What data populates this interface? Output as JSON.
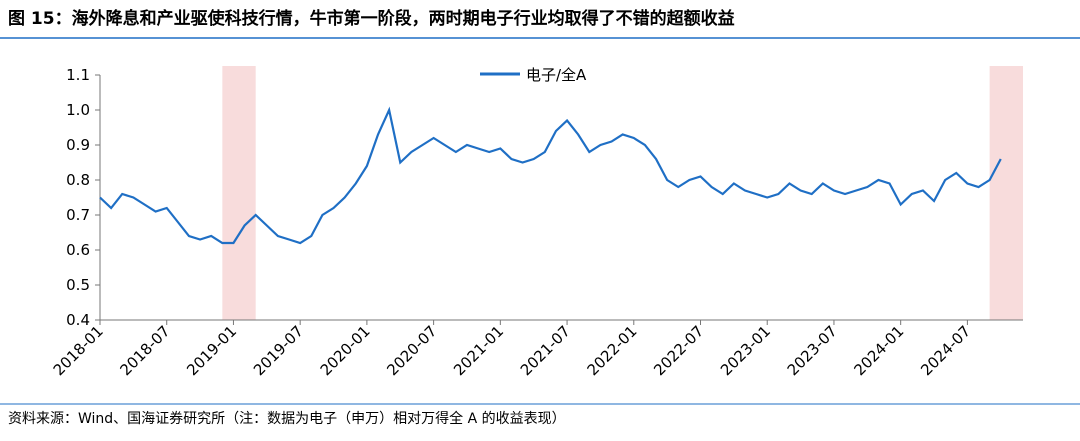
{
  "chart_data": {
    "type": "line",
    "title": "图 15：海外降息和产业驱使科技行情，牛市第一阶段，两时期电子行业均取得了不错的超额收益",
    "source": "资料来源：Wind、国海证券研究所（注：数据为电子（申万）相对万得全 A 的收益表现）",
    "x": [
      "2018-01",
      "2018-02",
      "2018-03",
      "2018-04",
      "2018-05",
      "2018-06",
      "2018-07",
      "2018-08",
      "2018-09",
      "2018-10",
      "2018-11",
      "2018-12",
      "2019-01",
      "2019-02",
      "2019-03",
      "2019-04",
      "2019-05",
      "2019-06",
      "2019-07",
      "2019-08",
      "2019-09",
      "2019-10",
      "2019-11",
      "2019-12",
      "2020-01",
      "2020-02",
      "2020-03",
      "2020-04",
      "2020-05",
      "2020-06",
      "2020-07",
      "2020-08",
      "2020-09",
      "2020-10",
      "2020-11",
      "2020-12",
      "2021-01",
      "2021-02",
      "2021-03",
      "2021-04",
      "2021-05",
      "2021-06",
      "2021-07",
      "2021-08",
      "2021-09",
      "2021-10",
      "2021-11",
      "2021-12",
      "2022-01",
      "2022-02",
      "2022-03",
      "2022-04",
      "2022-05",
      "2022-06",
      "2022-07",
      "2022-08",
      "2022-09",
      "2022-10",
      "2022-11",
      "2022-12",
      "2023-01",
      "2023-02",
      "2023-03",
      "2023-04",
      "2023-05",
      "2023-06",
      "2023-07",
      "2023-08",
      "2023-09",
      "2023-10",
      "2023-11",
      "2023-12",
      "2024-01",
      "2024-02",
      "2024-03",
      "2024-04",
      "2024-05",
      "2024-06",
      "2024-07",
      "2024-08",
      "2024-09",
      "2024-10"
    ],
    "series": [
      {
        "name": "电子/全A",
        "color": "#1f6fc5",
        "values": [
          0.75,
          0.72,
          0.76,
          0.75,
          0.73,
          0.71,
          0.72,
          0.68,
          0.64,
          0.63,
          0.64,
          0.62,
          0.62,
          0.67,
          0.7,
          0.67,
          0.64,
          0.63,
          0.62,
          0.64,
          0.7,
          0.72,
          0.75,
          0.79,
          0.84,
          0.93,
          1.0,
          0.85,
          0.88,
          0.9,
          0.92,
          0.9,
          0.88,
          0.9,
          0.89,
          0.88,
          0.89,
          0.86,
          0.85,
          0.86,
          0.88,
          0.94,
          0.97,
          0.93,
          0.88,
          0.9,
          0.91,
          0.93,
          0.92,
          0.9,
          0.86,
          0.8,
          0.78,
          0.8,
          0.81,
          0.78,
          0.76,
          0.79,
          0.77,
          0.76,
          0.75,
          0.76,
          0.79,
          0.77,
          0.76,
          0.79,
          0.77,
          0.76,
          0.77,
          0.78,
          0.8,
          0.79,
          0.73,
          0.76,
          0.77,
          0.74,
          0.8,
          0.82,
          0.79,
          0.78,
          0.8,
          0.86
        ]
      }
    ],
    "xlim": [
      "2018-01",
      "2024-12"
    ],
    "xticks": [
      "2018-01",
      "2018-07",
      "2019-01",
      "2019-07",
      "2020-01",
      "2020-07",
      "2021-01",
      "2021-07",
      "2022-01",
      "2022-07",
      "2023-01",
      "2023-07",
      "2024-01",
      "2024-07"
    ],
    "ylim": [
      0.4,
      1.1
    ],
    "yticks": [
      0.4,
      0.5,
      0.6,
      0.7,
      0.8,
      0.9,
      {
        "value": 1,
        "label": "1.0"
      },
      1.1
    ],
    "highlight_ranges": [
      [
        "2018-12",
        "2019-03"
      ],
      [
        "2024-09",
        "2024-12"
      ]
    ],
    "highlight_color": "#f8dcdc",
    "legend": "top"
  }
}
